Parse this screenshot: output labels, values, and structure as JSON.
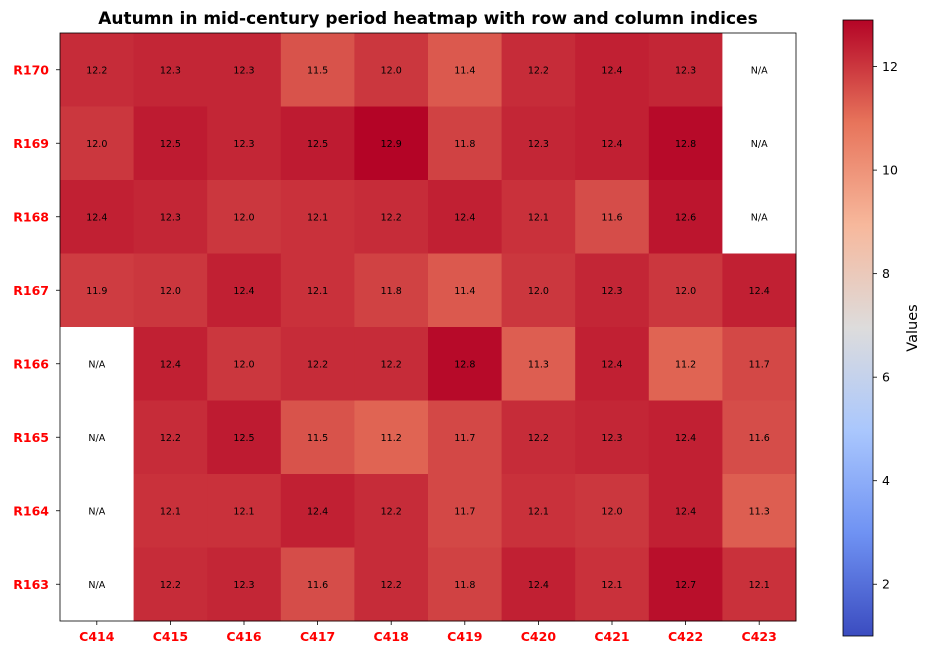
{
  "chart_data": {
    "type": "heatmap",
    "title": "Autumn in mid-century period heatmap with row and column indices",
    "rows": [
      "R170",
      "R169",
      "R168",
      "R167",
      "R166",
      "R165",
      "R164",
      "R163"
    ],
    "columns": [
      "C414",
      "C415",
      "C416",
      "C417",
      "C418",
      "C419",
      "C420",
      "C421",
      "C422",
      "C423"
    ],
    "values": [
      [
        12.2,
        12.3,
        12.3,
        11.5,
        12.0,
        11.4,
        12.2,
        12.4,
        12.3,
        null
      ],
      [
        12.0,
        12.5,
        12.3,
        12.5,
        12.9,
        11.8,
        12.3,
        12.4,
        12.8,
        null
      ],
      [
        12.4,
        12.3,
        12.0,
        12.1,
        12.2,
        12.4,
        12.1,
        11.6,
        12.6,
        null
      ],
      [
        11.9,
        12.0,
        12.4,
        12.1,
        11.8,
        11.4,
        12.0,
        12.3,
        12.0,
        12.4
      ],
      [
        null,
        12.4,
        12.0,
        12.2,
        12.2,
        12.8,
        11.3,
        12.4,
        11.2,
        11.7
      ],
      [
        null,
        12.2,
        12.5,
        11.5,
        11.2,
        11.7,
        12.2,
        12.3,
        12.4,
        11.6
      ],
      [
        null,
        12.1,
        12.1,
        12.4,
        12.2,
        11.7,
        12.1,
        12.0,
        12.4,
        11.3
      ],
      [
        null,
        12.2,
        12.3,
        11.6,
        12.2,
        11.8,
        12.4,
        12.1,
        12.7,
        12.1
      ]
    ],
    "missing_label": "N/A",
    "colormap": "coolwarm",
    "colormap_stops": [
      "#3b4cc0",
      "#6f92f3",
      "#aac7fd",
      "#dddcdc",
      "#f7b89c",
      "#e7745b",
      "#b40426"
    ],
    "color_range": [
      1.0,
      12.9
    ],
    "colorbar": {
      "label": "Values",
      "ticks": [
        "2",
        "4",
        "6",
        "8",
        "10",
        "12"
      ]
    }
  }
}
